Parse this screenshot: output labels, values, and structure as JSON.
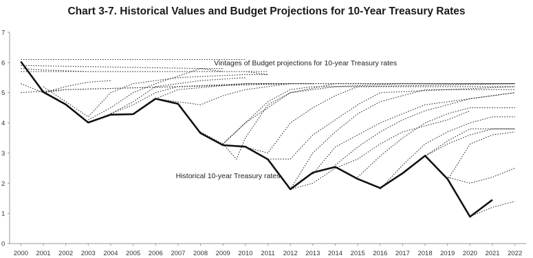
{
  "chart_data": {
    "type": "line",
    "title": "Chart 3-7. Historical Values and Budget Projections for 10-Year Treasury Rates",
    "xlabel": "",
    "ylabel": "",
    "x": [
      2000,
      2001,
      2002,
      2003,
      2004,
      2005,
      2006,
      2007,
      2008,
      2009,
      2010,
      2011,
      2012,
      2013,
      2014,
      2015,
      2016,
      2017,
      2018,
      2019,
      2020,
      2021,
      2022
    ],
    "ylim": [
      0,
      7
    ],
    "yticks": [
      0,
      1,
      2,
      3,
      4,
      5,
      6,
      7
    ],
    "grid": false,
    "annotations": [
      {
        "text": "Vintages of Budget projections for 10-year Treasury rates",
        "x": 2008.6,
        "y": 5.9
      },
      {
        "text": "Historical 10-year Treasury rates",
        "x": 2006.9,
        "y": 2.17
      }
    ],
    "series": [
      {
        "name": "Historical 10-year Treasury rates",
        "style": "solid",
        "points": [
          [
            2000,
            6.03
          ],
          [
            2001,
            5.02
          ],
          [
            2002,
            4.61
          ],
          [
            2003,
            4.01
          ],
          [
            2004,
            4.27
          ],
          [
            2005,
            4.29
          ],
          [
            2006,
            4.8
          ],
          [
            2007,
            4.63
          ],
          [
            2008,
            3.66
          ],
          [
            2009,
            3.26
          ],
          [
            2010,
            3.21
          ],
          [
            2011,
            2.79
          ],
          [
            2012,
            1.8
          ],
          [
            2013,
            2.35
          ],
          [
            2014,
            2.54
          ],
          [
            2015,
            2.14
          ],
          [
            2016,
            1.84
          ],
          [
            2017,
            2.33
          ],
          [
            2018,
            2.91
          ],
          [
            2019,
            2.14
          ],
          [
            2020,
            0.89
          ],
          [
            2021,
            1.45
          ]
        ]
      },
      {
        "style": "dotted",
        "points": [
          [
            2000,
            6.1
          ],
          [
            2010,
            6.1
          ]
        ]
      },
      {
        "style": "dotted",
        "points": [
          [
            2000,
            5.9
          ],
          [
            2008,
            5.8
          ],
          [
            2009,
            5.8
          ]
        ]
      },
      {
        "style": "dotted",
        "points": [
          [
            2000,
            5.8
          ],
          [
            2001,
            5.75
          ],
          [
            2003,
            5.7
          ],
          [
            2011,
            5.7
          ]
        ]
      },
      {
        "style": "dotted",
        "points": [
          [
            2000,
            5.7
          ],
          [
            2010,
            5.7
          ],
          [
            2011,
            5.6
          ]
        ]
      },
      {
        "style": "dotted",
        "points": [
          [
            2000,
            5.3
          ],
          [
            2001,
            5.0
          ],
          [
            2002,
            5.2
          ],
          [
            2003,
            5.35
          ],
          [
            2004,
            5.4
          ]
        ]
      },
      {
        "style": "dotted",
        "points": [
          [
            2000,
            5.0
          ],
          [
            2002,
            5.1
          ],
          [
            2012,
            5.3
          ],
          [
            2013,
            5.3
          ]
        ]
      },
      {
        "style": "dotted",
        "points": [
          [
            2001,
            5.0
          ],
          [
            2002,
            5.1
          ],
          [
            2012,
            5.3
          ],
          [
            2022,
            5.3
          ]
        ]
      },
      {
        "style": "dotted",
        "points": [
          [
            2001,
            5.2
          ],
          [
            2003,
            4.2
          ],
          [
            2004,
            5.0
          ],
          [
            2005,
            5.3
          ],
          [
            2007,
            5.5
          ],
          [
            2010,
            5.6
          ],
          [
            2011,
            5.6
          ]
        ]
      },
      {
        "style": "dotted",
        "points": [
          [
            2003,
            4.1
          ],
          [
            2004,
            4.5
          ],
          [
            2005,
            5.0
          ],
          [
            2006,
            5.3
          ],
          [
            2008,
            5.8
          ],
          [
            2009,
            5.7
          ]
        ]
      },
      {
        "style": "dotted",
        "points": [
          [
            2003,
            4.0
          ],
          [
            2004,
            4.3
          ],
          [
            2005,
            4.7
          ],
          [
            2006,
            5.2
          ],
          [
            2008,
            5.4
          ],
          [
            2010,
            5.5
          ]
        ]
      },
      {
        "style": "dotted",
        "points": [
          [
            2004,
            4.3
          ],
          [
            2005,
            4.6
          ],
          [
            2006,
            5.0
          ],
          [
            2007,
            5.2
          ],
          [
            2010,
            5.3
          ],
          [
            2012,
            5.3
          ]
        ]
      },
      {
        "style": "dotted",
        "points": [
          [
            2005,
            4.3
          ],
          [
            2006,
            4.8
          ],
          [
            2007,
            5.1
          ],
          [
            2010,
            5.3
          ],
          [
            2013,
            5.3
          ]
        ]
      },
      {
        "style": "dotted",
        "points": [
          [
            2006,
            4.8
          ],
          [
            2007,
            4.7
          ],
          [
            2008,
            4.6
          ],
          [
            2009,
            4.9
          ],
          [
            2010,
            5.1
          ],
          [
            2011,
            5.2
          ],
          [
            2012,
            5.3
          ],
          [
            2020,
            5.3
          ]
        ]
      },
      {
        "style": "dotted",
        "points": [
          [
            2008,
            3.7
          ],
          [
            2009,
            3.3
          ],
          [
            2010,
            4.0
          ],
          [
            2011,
            4.7
          ],
          [
            2012,
            5.1
          ],
          [
            2013,
            5.2
          ],
          [
            2016,
            5.2
          ],
          [
            2022,
            5.2
          ]
        ]
      },
      {
        "style": "dotted",
        "points": [
          [
            2009,
            3.3
          ],
          [
            2010,
            4.0
          ],
          [
            2011,
            4.5
          ],
          [
            2012,
            5.0
          ],
          [
            2014,
            5.3
          ],
          [
            2022,
            5.3
          ]
        ]
      },
      {
        "style": "dotted",
        "points": [
          [
            2009,
            3.3
          ],
          [
            2009.6,
            2.8
          ],
          [
            2010,
            3.5
          ],
          [
            2011,
            4.6
          ],
          [
            2012,
            5.0
          ],
          [
            2014,
            5.2
          ],
          [
            2017,
            5.3
          ],
          [
            2022,
            5.3
          ]
        ]
      },
      {
        "style": "dotted",
        "points": [
          [
            2010,
            3.2
          ],
          [
            2011,
            3.0
          ],
          [
            2012,
            4.0
          ],
          [
            2013,
            4.5
          ],
          [
            2014,
            4.9
          ],
          [
            2015,
            5.2
          ],
          [
            2022,
            5.3
          ]
        ]
      },
      {
        "style": "dotted",
        "points": [
          [
            2011,
            2.8
          ],
          [
            2012,
            2.8
          ],
          [
            2013,
            3.6
          ],
          [
            2014,
            4.1
          ],
          [
            2015,
            4.6
          ],
          [
            2016,
            5.0
          ],
          [
            2022,
            5.2
          ]
        ]
      },
      {
        "style": "dotted",
        "points": [
          [
            2012,
            1.8
          ],
          [
            2013,
            3.0
          ],
          [
            2014,
            3.7
          ],
          [
            2015,
            4.3
          ],
          [
            2016,
            4.7
          ],
          [
            2017,
            4.9
          ],
          [
            2018,
            5.1
          ],
          [
            2022,
            5.1
          ]
        ]
      },
      {
        "style": "dotted",
        "points": [
          [
            2013,
            2.3
          ],
          [
            2014,
            3.2
          ],
          [
            2015,
            3.6
          ],
          [
            2016,
            4.0
          ],
          [
            2017,
            4.3
          ],
          [
            2018,
            4.6
          ],
          [
            2019,
            4.7
          ],
          [
            2022,
            5.0
          ]
        ]
      },
      {
        "style": "dotted",
        "points": [
          [
            2014,
            2.6
          ],
          [
            2015,
            3.2
          ],
          [
            2016,
            3.7
          ],
          [
            2017,
            4.1
          ],
          [
            2018,
            4.4
          ],
          [
            2019,
            4.6
          ],
          [
            2020,
            4.8
          ],
          [
            2022,
            5.0
          ]
        ]
      },
      {
        "style": "dotted",
        "points": [
          [
            2015,
            2.2
          ],
          [
            2016,
            2.9
          ],
          [
            2017,
            3.5
          ],
          [
            2018,
            4.0
          ],
          [
            2019,
            4.3
          ],
          [
            2020,
            4.5
          ],
          [
            2022,
            4.5
          ]
        ]
      },
      {
        "style": "dotted",
        "points": [
          [
            2016,
            1.8
          ],
          [
            2017,
            2.6
          ],
          [
            2018,
            3.3
          ],
          [
            2019,
            3.7
          ],
          [
            2020,
            4.0
          ],
          [
            2021,
            4.2
          ],
          [
            2022,
            4.2
          ]
        ]
      },
      {
        "style": "dotted",
        "points": [
          [
            2017,
            2.3
          ],
          [
            2018,
            2.9
          ],
          [
            2019,
            3.4
          ],
          [
            2020,
            3.8
          ],
          [
            2022,
            3.8
          ]
        ]
      },
      {
        "style": "dotted",
        "points": [
          [
            2018,
            2.9
          ],
          [
            2019,
            3.3
          ],
          [
            2020,
            3.6
          ],
          [
            2021,
            3.8
          ],
          [
            2022,
            3.8
          ]
        ]
      },
      {
        "style": "dotted",
        "points": [
          [
            2019,
            2.1
          ],
          [
            2020,
            3.3
          ],
          [
            2021,
            3.6
          ],
          [
            2022,
            3.7
          ]
        ]
      },
      {
        "style": "dotted",
        "points": [
          [
            2012,
            1.8
          ],
          [
            2013,
            2.0
          ],
          [
            2014,
            2.5
          ],
          [
            2015,
            2.8
          ],
          [
            2016,
            3.3
          ],
          [
            2017,
            3.7
          ],
          [
            2018,
            3.9
          ],
          [
            2019,
            4.1
          ],
          [
            2020,
            4.4
          ]
        ]
      },
      {
        "style": "dotted",
        "points": [
          [
            2019,
            2.2
          ],
          [
            2020,
            2.0
          ],
          [
            2021,
            2.2
          ],
          [
            2022,
            2.5
          ]
        ]
      },
      {
        "style": "dotted",
        "points": [
          [
            2020,
            0.9
          ],
          [
            2021,
            1.2
          ],
          [
            2022,
            1.4
          ]
        ]
      }
    ]
  }
}
